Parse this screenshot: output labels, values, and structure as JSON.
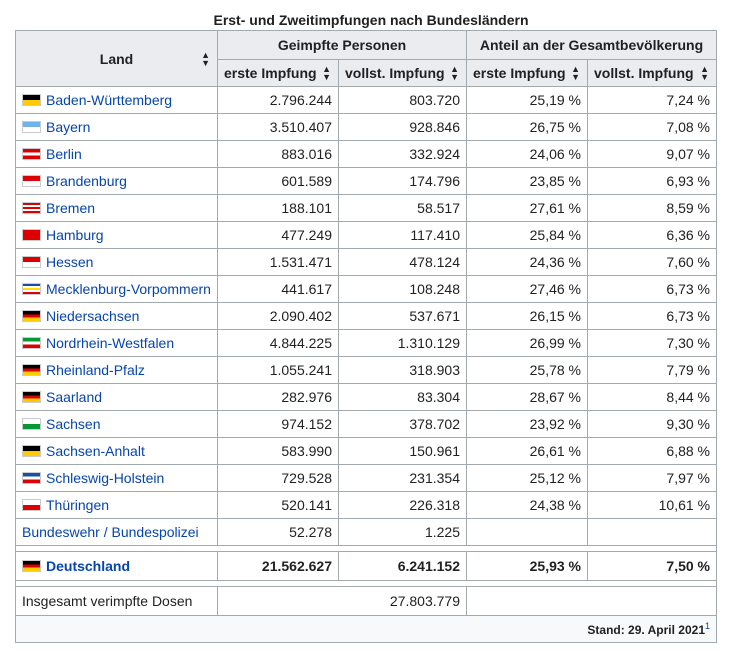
{
  "caption": "Erst- und Zweitimpfungen nach Bundesländern",
  "headers": {
    "land": "Land",
    "geimpfte": "Geimpfte Personen",
    "anteil": "Anteil an der Gesamtbevölkerung",
    "erste": "erste Impfung",
    "vollst": "vollst. Impfung"
  },
  "rows": [
    {
      "land": "Baden-Württemberg",
      "erste": "2.796.244",
      "vollst": "803.720",
      "anteil_erste": "25,19 %",
      "anteil_vollst": "7,24 %",
      "flag": [
        "#000000",
        "#ffcc00"
      ]
    },
    {
      "land": "Bayern",
      "erste": "3.510.407",
      "vollst": "928.846",
      "anteil_erste": "26,75 %",
      "anteil_vollst": "7,08 %",
      "flag": [
        "#6fb3e8",
        "#ffffff"
      ]
    },
    {
      "land": "Berlin",
      "erste": "883.016",
      "vollst": "332.924",
      "anteil_erste": "24,06 %",
      "anteil_vollst": "9,07 %",
      "flag": [
        "#dd0000",
        "#ffffff",
        "#dd0000"
      ]
    },
    {
      "land": "Brandenburg",
      "erste": "601.589",
      "vollst": "174.796",
      "anteil_erste": "23,85 %",
      "anteil_vollst": "6,93 %",
      "flag": [
        "#dd0000",
        "#ffffff"
      ]
    },
    {
      "land": "Bremen",
      "erste": "188.101",
      "vollst": "58.517",
      "anteil_erste": "27,61 %",
      "anteil_vollst": "8,59 %",
      "flag": [
        "#dd0000",
        "#ffffff",
        "#dd0000",
        "#ffffff",
        "#dd0000"
      ]
    },
    {
      "land": "Hamburg",
      "erste": "477.249",
      "vollst": "117.410",
      "anteil_erste": "25,84 %",
      "anteil_vollst": "6,36 %",
      "flag": [
        "#dd0000"
      ]
    },
    {
      "land": "Hessen",
      "erste": "1.531.471",
      "vollst": "478.124",
      "anteil_erste": "24,36 %",
      "anteil_vollst": "7,60 %",
      "flag": [
        "#dd0000",
        "#ffffff"
      ]
    },
    {
      "land": "Mecklenburg-Vorpommern",
      "erste": "441.617",
      "vollst": "108.248",
      "anteil_erste": "27,46 %",
      "anteil_vollst": "6,73 %",
      "flag": [
        "#1d4e9e",
        "#ffffff",
        "#ffdd00",
        "#ffffff",
        "#dd0000"
      ]
    },
    {
      "land": "Niedersachsen",
      "erste": "2.090.402",
      "vollst": "537.671",
      "anteil_erste": "26,15 %",
      "anteil_vollst": "6,73 %",
      "flag": [
        "#000000",
        "#dd0000",
        "#ffcc00"
      ]
    },
    {
      "land": "Nordrhein-Westfalen",
      "erste": "4.844.225",
      "vollst": "1.310.129",
      "anteil_erste": "26,99 %",
      "anteil_vollst": "7,30 %",
      "flag": [
        "#009933",
        "#ffffff",
        "#dd0000"
      ]
    },
    {
      "land": "Rheinland-Pfalz",
      "erste": "1.055.241",
      "vollst": "318.903",
      "anteil_erste": "25,78 %",
      "anteil_vollst": "7,79 %",
      "flag": [
        "#000000",
        "#dd0000",
        "#ffcc00"
      ]
    },
    {
      "land": "Saarland",
      "erste": "282.976",
      "vollst": "83.304",
      "anteil_erste": "28,67 %",
      "anteil_vollst": "8,44 %",
      "flag": [
        "#000000",
        "#dd0000",
        "#ffcc00"
      ]
    },
    {
      "land": "Sachsen",
      "erste": "974.152",
      "vollst": "378.702",
      "anteil_erste": "23,92 %",
      "anteil_vollst": "9,30 %",
      "flag": [
        "#ffffff",
        "#009933"
      ]
    },
    {
      "land": "Sachsen-Anhalt",
      "erste": "583.990",
      "vollst": "150.961",
      "anteil_erste": "26,61 %",
      "anteil_vollst": "6,88 %",
      "flag": [
        "#000000",
        "#ffcc00"
      ]
    },
    {
      "land": "Schleswig-Holstein",
      "erste": "729.528",
      "vollst": "231.354",
      "anteil_erste": "25,12 %",
      "anteil_vollst": "7,97 %",
      "flag": [
        "#1d4e9e",
        "#ffffff",
        "#dd0000"
      ]
    },
    {
      "land": "Thüringen",
      "erste": "520.141",
      "vollst": "226.318",
      "anteil_erste": "24,38 %",
      "anteil_vollst": "10,61 %",
      "flag": [
        "#ffffff",
        "#dd0000"
      ]
    }
  ],
  "bund": {
    "land": "Bundeswehr / Bundespolizei",
    "erste": "52.278",
    "vollst": "1.225"
  },
  "total": {
    "land": "Deutschland",
    "erste": "21.562.627",
    "vollst": "6.241.152",
    "anteil_erste": "25,93 %",
    "anteil_vollst": "7,50 %",
    "flag": [
      "#000000",
      "#dd0000",
      "#ffcc00"
    ]
  },
  "dosen": {
    "label": "Insgesamt verimpfte Dosen",
    "value": "27.803.779"
  },
  "footer": {
    "stand": "Stand: 29. April 2021",
    "ref": "1"
  },
  "colors": {
    "link": "#0645ad",
    "header_bg": "#eaecf0",
    "border": "#a2a9b1"
  }
}
